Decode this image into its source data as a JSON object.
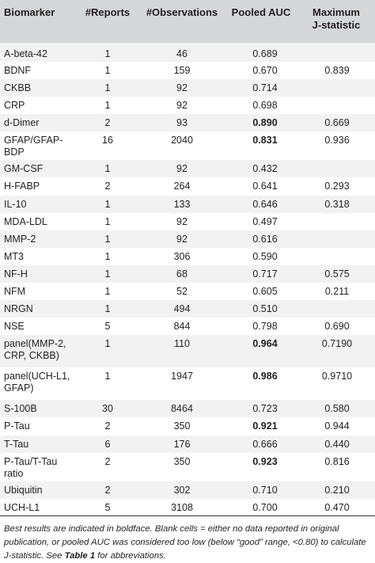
{
  "headers": {
    "biomarker": "Biomarker",
    "reports": "#Reports",
    "observations": "#Observations",
    "pooled_auc": "Pooled AUC",
    "max_j_line1": "Maximum",
    "max_j_line2": "J-statistic"
  },
  "rows": [
    {
      "biomarker": "A-beta-42",
      "reports": "1",
      "observations": "46",
      "auc": "0.689",
      "auc_bold": false,
      "j": ""
    },
    {
      "biomarker": "BDNF",
      "reports": "1",
      "observations": "159",
      "auc": "0.670",
      "auc_bold": false,
      "j": "0.839"
    },
    {
      "biomarker": "CKBB",
      "reports": "1",
      "observations": "92",
      "auc": "0.714",
      "auc_bold": false,
      "j": ""
    },
    {
      "biomarker": "CRP",
      "reports": "1",
      "observations": "92",
      "auc": "0.698",
      "auc_bold": false,
      "j": ""
    },
    {
      "biomarker": "d-Dimer",
      "reports": "2",
      "observations": "93",
      "auc": "0.890",
      "auc_bold": true,
      "j": "0.669"
    },
    {
      "biomarker": "GFAP/GFAP-BDP",
      "reports": "16",
      "observations": "2040",
      "auc": "0.831",
      "auc_bold": true,
      "j": "0.936"
    },
    {
      "biomarker": "GM-CSF",
      "reports": "1",
      "observations": "92",
      "auc": "0.432",
      "auc_bold": false,
      "j": ""
    },
    {
      "biomarker": "H-FABP",
      "reports": "2",
      "observations": "264",
      "auc": "0.641",
      "auc_bold": false,
      "j": "0.293"
    },
    {
      "biomarker": "IL-10",
      "reports": "1",
      "observations": "133",
      "auc": "0.646",
      "auc_bold": false,
      "j": "0.318"
    },
    {
      "biomarker": "MDA-LDL",
      "reports": "1",
      "observations": "92",
      "auc": "0.497",
      "auc_bold": false,
      "j": ""
    },
    {
      "biomarker": "MMP-2",
      "reports": "1",
      "observations": "92",
      "auc": "0.616",
      "auc_bold": false,
      "j": ""
    },
    {
      "biomarker": "MT3",
      "reports": "1",
      "observations": "306",
      "auc": "0.590",
      "auc_bold": false,
      "j": ""
    },
    {
      "biomarker": "NF-H",
      "reports": "1",
      "observations": "68",
      "auc": "0.717",
      "auc_bold": false,
      "j": "0.575"
    },
    {
      "biomarker": "NFM",
      "reports": "1",
      "observations": "52",
      "auc": "0.605",
      "auc_bold": false,
      "j": "0.211"
    },
    {
      "biomarker": "NRGN",
      "reports": "1",
      "observations": "494",
      "auc": "0.510",
      "auc_bold": false,
      "j": ""
    },
    {
      "biomarker": "NSE",
      "reports": "5",
      "observations": "844",
      "auc": "0.798",
      "auc_bold": false,
      "j": "0.690"
    },
    {
      "biomarker": "panel(MMP-2, CRP, CKBB)",
      "reports": "1",
      "observations": "110",
      "auc": "0.964",
      "auc_bold": true,
      "j": "0.7190",
      "tall": true
    },
    {
      "biomarker": "panel(UCH-L1, GFAP)",
      "reports": "1",
      "observations": "1947",
      "auc": "0.986",
      "auc_bold": true,
      "j": "0.9710",
      "tall": true
    },
    {
      "biomarker": "S-100B",
      "reports": "30",
      "observations": "8464",
      "auc": "0.723",
      "auc_bold": false,
      "j": "0.580"
    },
    {
      "biomarker": "P-Tau",
      "reports": "2",
      "observations": "350",
      "auc": "0.921",
      "auc_bold": true,
      "j": "0.944"
    },
    {
      "biomarker": "T-Tau",
      "reports": "6",
      "observations": "176",
      "auc": "0.666",
      "auc_bold": false,
      "j": "0.440"
    },
    {
      "biomarker": "P-Tau/T-Tau ratio",
      "reports": "2",
      "observations": "350",
      "auc": "0.923",
      "auc_bold": true,
      "j": "0.816"
    },
    {
      "biomarker": "Ubiquitin",
      "reports": "2",
      "observations": "302",
      "auc": "0.710",
      "auc_bold": false,
      "j": "0.210"
    },
    {
      "biomarker": "UCH-L1",
      "reports": "5",
      "observations": "3108",
      "auc": "0.700",
      "auc_bold": false,
      "j": "0.470"
    }
  ],
  "footnote": {
    "text_before": "Best results are indicated in boldface. Blank cells = either no data reported in original publication, or pooled AUC was considered too low (below “good” range, <0.80) to calculate J-statistic. See ",
    "bold_ref": "Table 1",
    "text_after": " for abbreviations."
  }
}
